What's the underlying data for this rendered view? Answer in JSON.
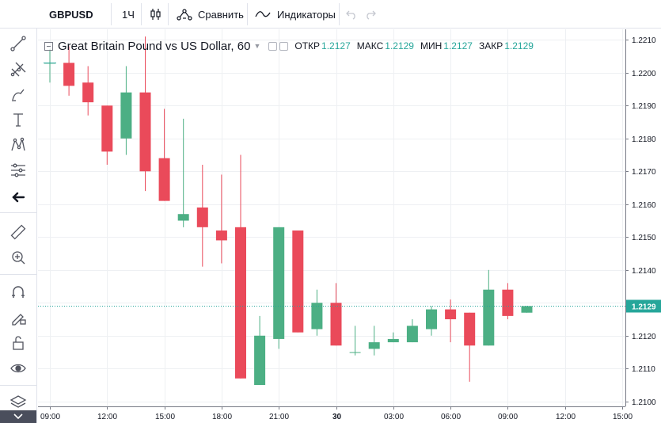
{
  "toolbar": {
    "symbol": "GBPUSD",
    "interval": "1Ч",
    "compare_label": "Сравнить",
    "indicators_label": "Индикаторы"
  },
  "legend": {
    "title": "Great Britain Pound vs US Dollar, 60",
    "open_label": "ОТКР",
    "open_value": "1.2127",
    "high_label": "МАКС",
    "high_value": "1.2129",
    "low_label": "МИН",
    "low_value": "1.2127",
    "close_label": "ЗАКР",
    "close_value": "1.2129"
  },
  "sidebar_icons": [
    "crosshair-icon",
    "trend-line-icon",
    "pitchfork-icon",
    "brush-icon",
    "text-icon",
    "pattern-icon",
    "prediction-icon",
    "back-arrow-icon",
    "ruler-icon",
    "zoom-in-icon",
    "magnet-icon",
    "lock-drawing-icon",
    "unlock-icon",
    "eye-icon",
    "layers-icon"
  ],
  "colors": {
    "up": "#26a69a",
    "up_fill": "#4caf84",
    "down": "#ef5350",
    "down_fill": "#ea4a5a",
    "price_line": "#26a69a",
    "grid": "#eef0f3"
  },
  "chart_data": {
    "type": "candlestick",
    "symbol": "GBPUSD",
    "timeframe": "60",
    "y_ticks": [
      "1.2210",
      "1.2200",
      "1.2190",
      "1.2180",
      "1.2170",
      "1.2160",
      "1.2150",
      "1.2140",
      "1.2130",
      "1.2120",
      "1.2110",
      "1.2100"
    ],
    "ylim": [
      1.20985,
      1.22132
    ],
    "x_ticks": [
      "09:00",
      "12:00",
      "15:00",
      "18:00",
      "21:00",
      "30",
      "03:00",
      "06:00",
      "09:00",
      "12:00",
      "15:00"
    ],
    "x_tick_bold": [
      false,
      false,
      false,
      false,
      false,
      true,
      false,
      false,
      false,
      false,
      false
    ],
    "current_price": "1.2129",
    "candles": [
      {
        "o": 1.2203,
        "h": 1.2207,
        "l": 1.2197,
        "c": 1.2203
      },
      {
        "o": 1.2203,
        "h": 1.2208,
        "l": 1.2193,
        "c": 1.2196
      },
      {
        "o": 1.2197,
        "h": 1.2202,
        "l": 1.2187,
        "c": 1.2191
      },
      {
        "o": 1.219,
        "h": 1.219,
        "l": 1.2172,
        "c": 1.2176
      },
      {
        "o": 1.218,
        "h": 1.2202,
        "l": 1.2175,
        "c": 1.2194
      },
      {
        "o": 1.2194,
        "h": 1.2211,
        "l": 1.2164,
        "c": 1.217
      },
      {
        "o": 1.2174,
        "h": 1.2189,
        "l": 1.2161,
        "c": 1.2161
      },
      {
        "o": 1.2155,
        "h": 1.2186,
        "l": 1.2153,
        "c": 1.2157
      },
      {
        "o": 1.2159,
        "h": 1.2172,
        "l": 1.2141,
        "c": 1.2153
      },
      {
        "o": 1.2152,
        "h": 1.2169,
        "l": 1.2142,
        "c": 1.2149
      },
      {
        "o": 1.2153,
        "h": 1.2175,
        "l": 1.2107,
        "c": 1.2107
      },
      {
        "o": 1.2105,
        "h": 1.2126,
        "l": 1.2105,
        "c": 1.212
      },
      {
        "o": 1.2119,
        "h": 1.2153,
        "l": 1.2116,
        "c": 1.2153
      },
      {
        "o": 1.2152,
        "h": 1.2152,
        "l": 1.2121,
        "c": 1.2121
      },
      {
        "o": 1.2122,
        "h": 1.2134,
        "l": 1.212,
        "c": 1.213
      },
      {
        "o": 1.213,
        "h": 1.2136,
        "l": 1.2117,
        "c": 1.2117
      },
      {
        "o": 1.2115,
        "h": 1.2123,
        "l": 1.2114,
        "c": 1.2115
      },
      {
        "o": 1.2116,
        "h": 1.2123,
        "l": 1.2114,
        "c": 1.2118
      },
      {
        "o": 1.2118,
        "h": 1.2121,
        "l": 1.2118,
        "c": 1.2119
      },
      {
        "o": 1.2118,
        "h": 1.2125,
        "l": 1.2118,
        "c": 1.2123
      },
      {
        "o": 1.2122,
        "h": 1.2129,
        "l": 1.212,
        "c": 1.2128
      },
      {
        "o": 1.2128,
        "h": 1.2131,
        "l": 1.2118,
        "c": 1.2125
      },
      {
        "o": 1.2127,
        "h": 1.2127,
        "l": 1.2106,
        "c": 1.2117
      },
      {
        "o": 1.2117,
        "h": 1.214,
        "l": 1.2117,
        "c": 1.2134
      },
      {
        "o": 1.2134,
        "h": 1.2136,
        "l": 1.2125,
        "c": 1.2126
      },
      {
        "o": 1.2127,
        "h": 1.2129,
        "l": 1.2127,
        "c": 1.2129
      }
    ]
  }
}
